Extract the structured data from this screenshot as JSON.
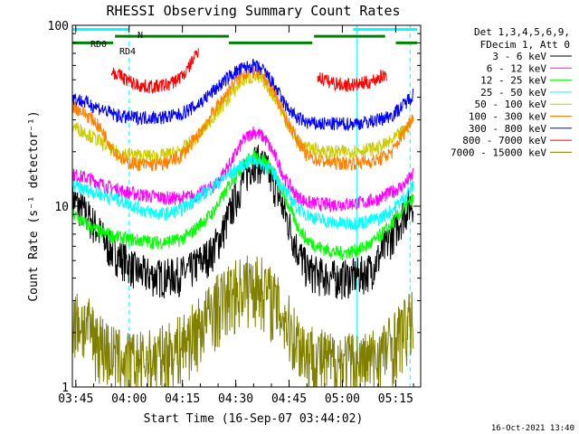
{
  "chart_data": {
    "type": "line",
    "title": "RHESSI Observing Summary Count Rates",
    "xlabel": "Start Time (16-Sep-07 03:44:02)",
    "ylabel": "Count Rate (s⁻¹ detector⁻¹)",
    "y_scale": "log",
    "ylim": [
      1,
      100
    ],
    "xlim_minutes": [
      0,
      98
    ],
    "x_ticks": [
      "03:45",
      "04:00",
      "04:15",
      "04:30",
      "04:45",
      "05:00",
      "05:15"
    ],
    "y_ticks": [
      "1",
      "10",
      "100"
    ],
    "legend_header": [
      "Det 1,3,4,5,6,9,",
      "FDecim 1, Att 0"
    ],
    "legend_position": "right",
    "series": [
      {
        "name": "3 - 6 keV",
        "color": "#000000",
        "x": [
          0,
          2,
          4,
          6,
          8,
          10,
          12,
          15,
          18,
          21,
          24,
          27,
          30,
          33,
          36,
          39,
          42,
          45,
          48,
          51,
          54,
          57,
          60,
          63,
          66,
          69,
          72,
          75,
          78,
          81,
          84,
          87,
          90,
          93,
          96
        ],
        "values": [
          11,
          10,
          9,
          8,
          7,
          6,
          5.5,
          5,
          4.4,
          4.2,
          4.1,
          4.1,
          4.2,
          4.4,
          5,
          5.5,
          7,
          10,
          14,
          18,
          17,
          13,
          9,
          6,
          4.5,
          4.2,
          4.1,
          4.0,
          4.1,
          4.2,
          4.5,
          5.5,
          7,
          9,
          11
        ]
      },
      {
        "name": "6 - 12 keV",
        "color": "#ff00ff",
        "x": [
          0,
          3,
          6,
          9,
          12,
          15,
          20,
          25,
          30,
          35,
          40,
          45,
          48,
          51,
          54,
          57,
          60,
          63,
          66,
          69,
          72,
          77,
          82,
          86,
          90,
          93,
          96
        ],
        "values": [
          15,
          14.5,
          14,
          13,
          12.5,
          12,
          11.5,
          11.2,
          11,
          11.5,
          13,
          18,
          23,
          26,
          24,
          19,
          14,
          11.5,
          10.5,
          10.3,
          10.2,
          10.3,
          10.5,
          11,
          12,
          13,
          15
        ]
      },
      {
        "name": "12 - 25 keV",
        "color": "#00ff00",
        "x": [
          0,
          2,
          4,
          6,
          8,
          10,
          12,
          15,
          18,
          21,
          24,
          27,
          30,
          33,
          36,
          39,
          42,
          45,
          48,
          51,
          54,
          57,
          60,
          63,
          66,
          69,
          72,
          75,
          78,
          81,
          84,
          87,
          90,
          93,
          96
        ],
        "values": [
          9,
          8.5,
          8,
          7.5,
          7.2,
          7,
          6.8,
          6.6,
          6.5,
          6.4,
          6.3,
          6.4,
          6.5,
          7,
          8,
          9,
          11,
          14,
          17,
          19,
          18,
          15,
          11,
          8,
          6.5,
          6,
          5.7,
          5.5,
          5.6,
          5.8,
          6.2,
          7,
          8,
          9.5,
          11
        ]
      },
      {
        "name": "25 - 50 keV",
        "color": "#00ffff",
        "x": [
          0,
          3,
          6,
          9,
          12,
          15,
          20,
          25,
          30,
          35,
          40,
          45,
          48,
          51,
          54,
          57,
          60,
          63,
          66,
          69,
          72,
          77,
          82,
          86,
          90,
          93,
          96
        ],
        "values": [
          13,
          12.5,
          12,
          11.5,
          11,
          10.5,
          9.5,
          9,
          9.5,
          11,
          13,
          15.5,
          17,
          18,
          17,
          15,
          12,
          10,
          9,
          8.5,
          8.2,
          8,
          8.2,
          8.5,
          9.5,
          11,
          13
        ]
      },
      {
        "name": "50 - 100 keV",
        "color": "#cccc00",
        "x": [
          0,
          3,
          6,
          9,
          12,
          15,
          20,
          25,
          30,
          35,
          40,
          45,
          48,
          51,
          54,
          57,
          60,
          63,
          66,
          69,
          72,
          77,
          82,
          86,
          90,
          93,
          96
        ],
        "values": [
          28,
          26,
          24,
          22,
          20,
          19.5,
          19,
          19,
          20,
          24,
          32,
          42,
          50,
          52,
          49,
          40,
          30,
          23,
          21,
          20.5,
          20,
          20,
          20.5,
          21,
          23,
          26,
          30
        ]
      },
      {
        "name": "100 - 300 keV",
        "color": "#ff8000",
        "x": [
          0,
          3,
          6,
          9,
          12,
          15,
          20,
          25,
          30,
          35,
          40,
          45,
          48,
          51,
          54,
          57,
          60,
          63,
          66,
          69,
          72,
          77,
          82,
          86,
          90,
          93,
          96
        ],
        "values": [
          36,
          33,
          30,
          25,
          20,
          17.5,
          17,
          17,
          18.5,
          24,
          34,
          47,
          54,
          56,
          52,
          42,
          31,
          24,
          19,
          18,
          17.5,
          17.3,
          17.5,
          18,
          20,
          25,
          32
        ]
      },
      {
        "name": "300 - 800 keV",
        "color": "#0000ff",
        "x": [
          0,
          3,
          6,
          9,
          12,
          15,
          20,
          25,
          30,
          35,
          40,
          45,
          48,
          51,
          54,
          57,
          60,
          63,
          66,
          69,
          72,
          77,
          82,
          86,
          90,
          93,
          96
        ],
        "values": [
          40,
          38,
          36,
          34,
          32,
          31,
          31,
          31,
          32,
          36,
          44,
          54,
          58,
          60,
          56,
          46,
          36,
          31,
          29,
          28.5,
          28.5,
          28.5,
          29,
          30,
          32,
          36,
          42
        ]
      },
      {
        "name": "800 - 7000 keV",
        "color": "#ff0000",
        "x": [
          11,
          14,
          17,
          20,
          24,
          28,
          32,
          35.5
        ],
        "values": [
          56,
          52,
          48,
          46,
          46,
          48,
          55,
          74
        ]
      },
      {
        "name": "7000 - 15000 keV",
        "color": "#808000",
        "x": [
          0,
          3,
          6,
          9,
          12,
          15,
          20,
          25,
          30,
          35,
          40,
          45,
          48,
          51,
          54,
          57,
          60,
          63,
          66,
          69,
          72,
          77,
          82,
          86,
          90,
          93,
          96
        ],
        "values": [
          2.4,
          2.3,
          2.0,
          1.7,
          1.5,
          1.4,
          1.4,
          1.5,
          1.7,
          2.1,
          2.8,
          3.4,
          3.7,
          3.8,
          3.6,
          3.0,
          2.4,
          1.9,
          1.6,
          1.5,
          1.4,
          1.4,
          1.4,
          1.5,
          1.8,
          2.1,
          2.4
        ]
      }
    ],
    "extra_series": [
      {
        "name": "800 - 7000 keV b",
        "color": "#ff0000",
        "x": [
          69,
          72,
          76,
          80,
          84,
          88.5
        ],
        "values": [
          52,
          49,
          47,
          47,
          49,
          54
        ]
      }
    ],
    "state_bars": [
      {
        "label": "N",
        "color": "#00ffff",
        "value": 95,
        "segments": [
          [
            0,
            16
          ],
          [
            79,
            97
          ]
        ]
      },
      {
        "label": "RD0",
        "color": "#008000",
        "value": 87,
        "segments": [
          [
            12,
            44
          ],
          [
            68,
            88
          ]
        ]
      },
      {
        "label": "RD4",
        "color": "#008000",
        "value": 80,
        "segments": [
          [
            0,
            11.5
          ],
          [
            44,
            67.5
          ],
          [
            91,
            97
          ]
        ]
      }
    ],
    "annotations": {
      "footer": "16-Oct-2021 13:40"
    },
    "vertical_markers": [
      {
        "x": 80,
        "style": "solid",
        "color": "#00ffff"
      },
      {
        "x": 16,
        "style": "dashed",
        "color": "#00ffff"
      },
      {
        "x": 95,
        "style": "dashed",
        "color": "#00ffff"
      }
    ]
  }
}
